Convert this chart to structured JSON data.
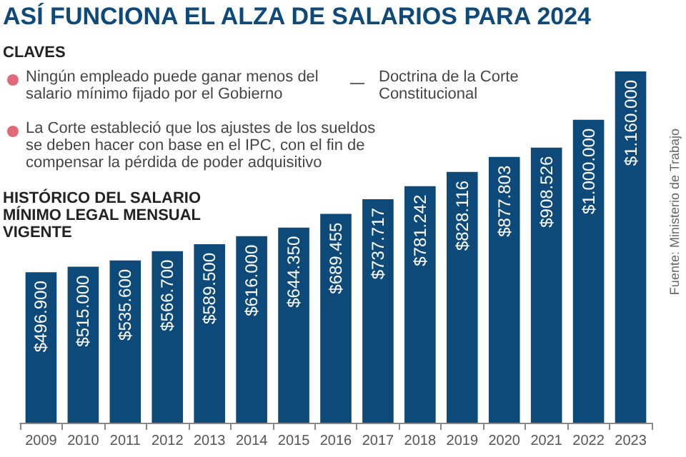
{
  "chart_data": {
    "type": "bar",
    "title": "ASÍ FUNCIONA EL ALZA DE SALARIOS PARA 2024",
    "subtitle": "HISTÓRICO DEL SALARIO MÍNIMO LEGAL MENSUAL VIGENTE",
    "annotations": [
      "CLAVES",
      "Ningún empleado puede ganar menos del salario mínimo fijado por el Gobierno",
      "Doctrina de la Corte Constitucional",
      "La Corte estableció que los ajustes de los sueldos se deben hacer con base en el IPC, con el fin de compensar la pérdida de poder adquisitivo",
      "Fuente: Ministerio de Trabajo"
    ],
    "categories": [
      "2009",
      "2010",
      "2011",
      "2012",
      "2013",
      "2014",
      "2015",
      "2016",
      "2017",
      "2018",
      "2019",
      "2020",
      "2021",
      "2022",
      "2023"
    ],
    "values": [
      496900,
      515000,
      535600,
      566700,
      589500,
      616000,
      644350,
      689455,
      737717,
      781242,
      828116,
      877803,
      908526,
      1000000,
      1160000
    ],
    "value_labels": [
      "$496.900",
      "$515.000",
      "$535.600",
      "$566.700",
      "$589.500",
      "$616.000",
      "$644.350",
      "$689.455",
      "$737.717",
      "$781.242",
      "$828.116",
      "$877.803",
      "$908.526",
      "$1.000.000",
      "$1.160.000"
    ],
    "color": "#0d4a7a"
  }
}
